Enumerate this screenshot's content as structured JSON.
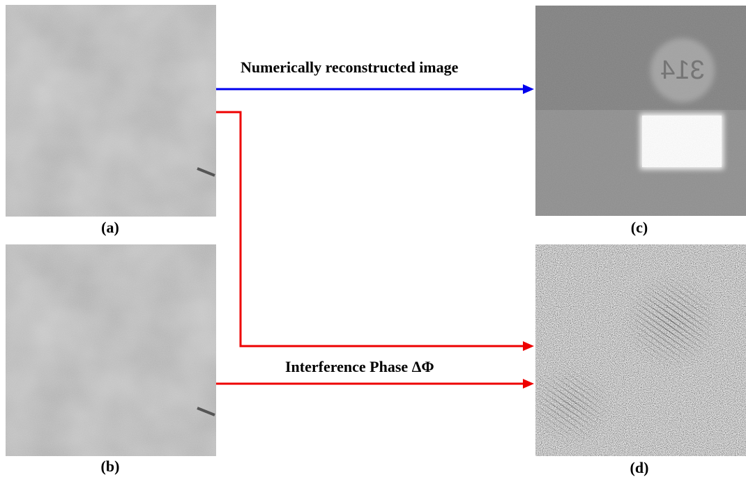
{
  "captions": {
    "a": "(a)",
    "b": "(b)",
    "c": "(c)",
    "d": "(d)"
  },
  "labels": {
    "top_arrow": "Numerically reconstructed image",
    "bottom_arrow": "Interference Phase ΔΦ"
  },
  "panel_c": {
    "text": "314"
  },
  "colors": {
    "blue_arrow": "#0000ee",
    "red_arrow": "#ee0000"
  }
}
